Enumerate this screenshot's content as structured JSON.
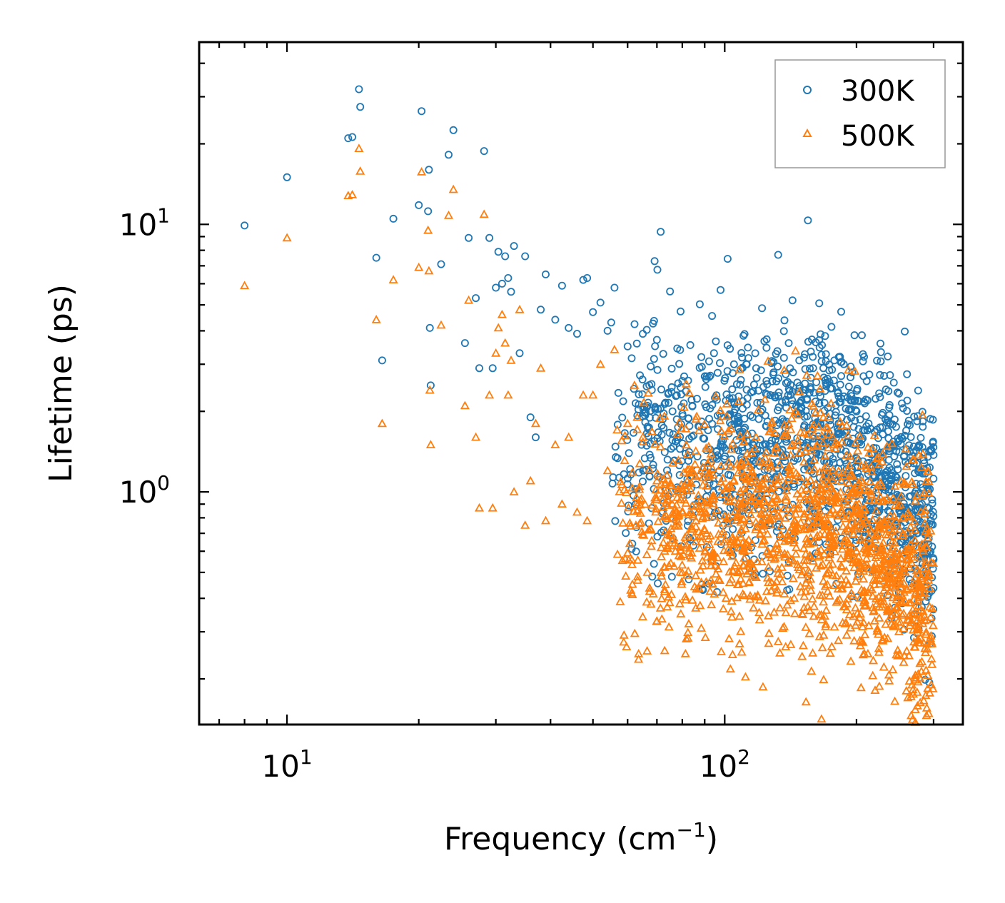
{
  "chart_data": {
    "type": "scatter",
    "title": "",
    "xlabel": "Frequency (cm",
    "xlabel_sup": "−1",
    "xlabel_end": ")",
    "ylabel": "Lifetime (ps)",
    "xscale": "log",
    "yscale": "log",
    "xlim": [
      6.3,
      350
    ],
    "ylim": [
      0.135,
      48
    ],
    "xticks": [
      {
        "value": 10,
        "base": "10",
        "exp": "1"
      },
      {
        "value": 100,
        "base": "10",
        "exp": "2"
      }
    ],
    "yticks": [
      {
        "value": 1,
        "base": "10",
        "exp": "0"
      },
      {
        "value": 10,
        "base": "10",
        "exp": "1"
      }
    ],
    "legend_position": "top-right",
    "series": [
      {
        "name": "300K",
        "color": "#1f77b4",
        "marker": "circle",
        "sample_points": [
          [
            8,
            9.9
          ],
          [
            10,
            15
          ],
          [
            13.8,
            21
          ],
          [
            14.1,
            21.2
          ],
          [
            14.6,
            32
          ],
          [
            14.7,
            27.5
          ],
          [
            16,
            7.5
          ],
          [
            16.5,
            3.1
          ],
          [
            17.5,
            10.5
          ],
          [
            20,
            11.8
          ],
          [
            20.3,
            26.5
          ],
          [
            21,
            11.2
          ],
          [
            21.1,
            16
          ],
          [
            21.2,
            4.1
          ],
          [
            21.3,
            2.5
          ],
          [
            22.5,
            7.1
          ],
          [
            23.4,
            18.2
          ],
          [
            24,
            22.5
          ],
          [
            25.5,
            3.6
          ],
          [
            26,
            8.9
          ],
          [
            27,
            5.3
          ],
          [
            27.5,
            2.9
          ],
          [
            28.2,
            18.8
          ],
          [
            29,
            8.9
          ],
          [
            29.5,
            2.9
          ],
          [
            30,
            5.8
          ],
          [
            30.4,
            7.9
          ],
          [
            31,
            6
          ],
          [
            31.5,
            7.6
          ],
          [
            32,
            6.3
          ],
          [
            32.5,
            5.6
          ],
          [
            33,
            8.3
          ],
          [
            34,
            3.3
          ],
          [
            35,
            7.6
          ],
          [
            36,
            1.9
          ],
          [
            37,
            1.6
          ],
          [
            38,
            4.8
          ],
          [
            39,
            6.5
          ],
          [
            41,
            4.4
          ],
          [
            42.5,
            5.9
          ],
          [
            44,
            4.1
          ],
          [
            46,
            3.9
          ],
          [
            47.5,
            6.2
          ],
          [
            48.5,
            6.3
          ],
          [
            50,
            4.7
          ],
          [
            52,
            5.1
          ],
          [
            54,
            4.0
          ],
          [
            56,
            5.8
          ],
          [
            60,
            3.5
          ],
          [
            65,
            3.9
          ],
          [
            70,
            3.7
          ],
          [
            80,
            2.6
          ],
          [
            90,
            2.7
          ],
          [
            105,
            3.0
          ],
          [
            112,
            3.0
          ],
          [
            118,
            2.9
          ],
          [
            140,
            3.6
          ],
          [
            148,
            3.1
          ],
          [
            168,
            2.9
          ],
          [
            178,
            3.1
          ],
          [
            195,
            2.2
          ],
          [
            200,
            2.0
          ],
          [
            220,
            1.2
          ],
          [
            250,
            0.95
          ],
          [
            290,
            0.44
          ]
        ]
      },
      {
        "name": "500K",
        "color": "#ff7f0e",
        "marker": "triangle",
        "sample_points": [
          [
            8,
            5.9
          ],
          [
            10,
            8.9
          ],
          [
            13.8,
            12.8
          ],
          [
            14.1,
            12.9
          ],
          [
            14.6,
            19.2
          ],
          [
            14.7,
            15.8
          ],
          [
            16,
            4.4
          ],
          [
            16.5,
            1.8
          ],
          [
            17.5,
            6.2
          ],
          [
            20,
            6.9
          ],
          [
            20.3,
            15.7
          ],
          [
            21,
            9.5
          ],
          [
            21.1,
            6.7
          ],
          [
            21.2,
            2.4
          ],
          [
            21.3,
            1.5
          ],
          [
            22.5,
            4.2
          ],
          [
            23.4,
            10.8
          ],
          [
            24,
            13.5
          ],
          [
            25.5,
            2.1
          ],
          [
            26,
            5.2
          ],
          [
            27,
            1.6
          ],
          [
            27.5,
            0.87
          ],
          [
            28.2,
            10.9
          ],
          [
            29,
            2.3
          ],
          [
            29.5,
            0.87
          ],
          [
            30,
            3.3
          ],
          [
            30.4,
            4.1
          ],
          [
            31,
            4.6
          ],
          [
            31.5,
            3.6
          ],
          [
            32,
            2.3
          ],
          [
            32.5,
            3.1
          ],
          [
            33,
            1.0
          ],
          [
            34,
            4.8
          ],
          [
            35,
            0.75
          ],
          [
            36,
            1.1
          ],
          [
            37,
            1.8
          ],
          [
            38,
            2.9
          ],
          [
            39,
            0.78
          ],
          [
            41,
            1.5
          ],
          [
            42.5,
            0.9
          ],
          [
            44,
            1.6
          ],
          [
            46,
            0.84
          ],
          [
            47.5,
            2.3
          ],
          [
            48.5,
            0.78
          ],
          [
            50,
            2.3
          ],
          [
            52,
            3.0
          ],
          [
            54,
            1.2
          ],
          [
            56,
            3.4
          ],
          [
            60,
            1.8
          ],
          [
            65,
            1.6
          ],
          [
            70,
            1.1
          ],
          [
            80,
            1.0
          ],
          [
            90,
            1.2
          ],
          [
            105,
            1.1
          ],
          [
            112,
            1.3
          ],
          [
            118,
            1.6
          ],
          [
            140,
            1.8
          ],
          [
            148,
            1.4
          ],
          [
            168,
            1.9
          ],
          [
            178,
            1.5
          ],
          [
            195,
            0.8
          ],
          [
            200,
            0.6
          ],
          [
            220,
            0.45
          ],
          [
            250,
            0.3
          ],
          [
            262,
            0.17
          ],
          [
            290,
            0.27
          ]
        ]
      }
    ],
    "dense_cloud": {
      "description_note": "dense overlapping band of points between 55 and 300 cm^-1",
      "300K": {
        "x_range": [
          55,
          300
        ],
        "y_center": 1.55,
        "y_decades_spread": 0.22,
        "count": 1400,
        "seed": 11
      },
      "500K": {
        "x_range": [
          55,
          300
        ],
        "y_center": 0.75,
        "y_decades_spread": 0.22,
        "count": 1600,
        "seed": 29
      }
    }
  }
}
